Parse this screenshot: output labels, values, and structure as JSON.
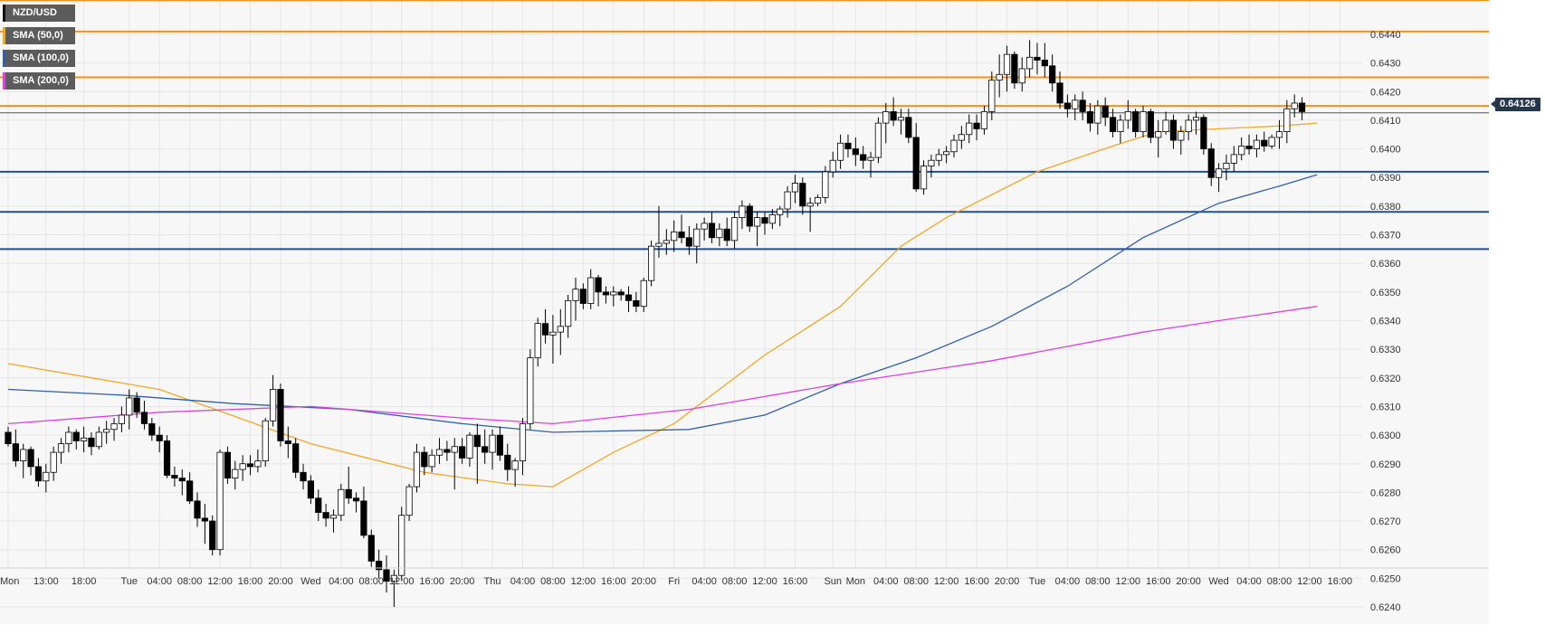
{
  "legend": [
    {
      "label": "NZD/USD",
      "color": "#111111"
    },
    {
      "label": "SMA (50,0)",
      "color": "#f5a623"
    },
    {
      "label": "SMA (100,0)",
      "color": "#2f5fad"
    },
    {
      "label": "SMA (200,0)",
      "color": "#e33de3"
    }
  ],
  "last_price": "0.64126",
  "chart_data": {
    "type": "candlestick",
    "symbol": "NZD/USD",
    "ylim": [
      0.6235,
      0.6452
    ],
    "y_ticks": [
      "0.6240",
      "0.6250",
      "0.6260",
      "0.6270",
      "0.6280",
      "0.6290",
      "0.6300",
      "0.6310",
      "0.6320",
      "0.6330",
      "0.6340",
      "0.6350",
      "0.6360",
      "0.6370",
      "0.6380",
      "0.6390",
      "0.6400",
      "0.6410",
      "0.6420",
      "0.6430",
      "0.6440"
    ],
    "x_ticks": [
      {
        "label": "Mon",
        "hour": 0
      },
      {
        "label": "13:00",
        "hour": 5
      },
      {
        "label": "18:00",
        "hour": 10
      },
      {
        "label": "Tue",
        "hour": 16
      },
      {
        "label": "04:00",
        "hour": 20
      },
      {
        "label": "08:00",
        "hour": 24
      },
      {
        "label": "12:00",
        "hour": 28
      },
      {
        "label": "16:00",
        "hour": 32
      },
      {
        "label": "20:00",
        "hour": 36
      },
      {
        "label": "Wed",
        "hour": 40
      },
      {
        "label": "04:00",
        "hour": 44
      },
      {
        "label": "08:00",
        "hour": 48
      },
      {
        "label": "12:00",
        "hour": 52
      },
      {
        "label": "16:00",
        "hour": 56
      },
      {
        "label": "20:00",
        "hour": 60
      },
      {
        "label": "Thu",
        "hour": 64
      },
      {
        "label": "04:00",
        "hour": 68
      },
      {
        "label": "08:00",
        "hour": 72
      },
      {
        "label": "12:00",
        "hour": 76
      },
      {
        "label": "16:00",
        "hour": 80
      },
      {
        "label": "20:00",
        "hour": 84
      },
      {
        "label": "Fri",
        "hour": 88
      },
      {
        "label": "04:00",
        "hour": 92
      },
      {
        "label": "08:00",
        "hour": 96
      },
      {
        "label": "12:00",
        "hour": 100
      },
      {
        "label": "16:00",
        "hour": 104
      },
      {
        "label": "Sun",
        "hour": 109
      },
      {
        "label": "Mon",
        "hour": 112
      },
      {
        "label": "04:00",
        "hour": 116
      },
      {
        "label": "08:00",
        "hour": 120
      },
      {
        "label": "12:00",
        "hour": 124
      },
      {
        "label": "16:00",
        "hour": 128
      },
      {
        "label": "20:00",
        "hour": 132
      },
      {
        "label": "Tue",
        "hour": 136
      },
      {
        "label": "04:00",
        "hour": 140
      },
      {
        "label": "08:00",
        "hour": 144
      },
      {
        "label": "12:00",
        "hour": 148
      },
      {
        "label": "16:00",
        "hour": 152
      },
      {
        "label": "20:00",
        "hour": 156
      },
      {
        "label": "Wed",
        "hour": 160
      },
      {
        "label": "04:00",
        "hour": 164
      },
      {
        "label": "08:00",
        "hour": 168
      },
      {
        "label": "12:00",
        "hour": 172
      },
      {
        "label": "16:00",
        "hour": 176
      }
    ],
    "x_max_hour": 179,
    "candles": [
      [
        0.6301,
        0.6303,
        0.6296,
        0.6297
      ],
      [
        0.6297,
        0.6302,
        0.6289,
        0.6291
      ],
      [
        0.6291,
        0.6297,
        0.6285,
        0.6295
      ],
      [
        0.6295,
        0.6296,
        0.6286,
        0.6289
      ],
      [
        0.6289,
        0.6292,
        0.6282,
        0.6284
      ],
      [
        0.6284,
        0.629,
        0.628,
        0.6287
      ],
      [
        0.6287,
        0.6296,
        0.6284,
        0.6294
      ],
      [
        0.6294,
        0.6299,
        0.629,
        0.6297
      ],
      [
        0.6297,
        0.6303,
        0.6294,
        0.6301
      ],
      [
        0.6301,
        0.6302,
        0.6295,
        0.6298
      ],
      [
        0.6298,
        0.6303,
        0.6294,
        0.6299
      ],
      [
        0.6299,
        0.6301,
        0.6293,
        0.6296
      ],
      [
        0.6296,
        0.6303,
        0.6295,
        0.6301
      ],
      [
        0.6301,
        0.6305,
        0.6297,
        0.6302
      ],
      [
        0.6302,
        0.6306,
        0.6298,
        0.6304
      ],
      [
        0.6304,
        0.631,
        0.6301,
        0.6307
      ],
      [
        0.6307,
        0.6316,
        0.6302,
        0.6313
      ],
      [
        0.6313,
        0.6315,
        0.6306,
        0.6308
      ],
      [
        0.6308,
        0.6312,
        0.6302,
        0.6304
      ],
      [
        0.6304,
        0.6306,
        0.6298,
        0.63
      ],
      [
        0.63,
        0.6303,
        0.6294,
        0.6298
      ],
      [
        0.6298,
        0.63,
        0.6285,
        0.6286
      ],
      [
        0.6286,
        0.6289,
        0.6282,
        0.6285
      ],
      [
        0.6285,
        0.6288,
        0.6279,
        0.6284
      ],
      [
        0.6284,
        0.6287,
        0.6276,
        0.6277
      ],
      [
        0.6277,
        0.628,
        0.6268,
        0.6271
      ],
      [
        0.6271,
        0.6276,
        0.6262,
        0.627
      ],
      [
        0.627,
        0.6272,
        0.6258,
        0.626
      ],
      [
        0.626,
        0.6295,
        0.6258,
        0.6294
      ],
      [
        0.6294,
        0.6296,
        0.6283,
        0.6285
      ],
      [
        0.6285,
        0.6291,
        0.6281,
        0.6288
      ],
      [
        0.6288,
        0.6293,
        0.6284,
        0.629
      ],
      [
        0.629,
        0.6293,
        0.6286,
        0.6289
      ],
      [
        0.6289,
        0.6295,
        0.6287,
        0.6291
      ],
      [
        0.6291,
        0.6306,
        0.6289,
        0.6305
      ],
      [
        0.6305,
        0.6321,
        0.6303,
        0.6316
      ],
      [
        0.6316,
        0.6318,
        0.6296,
        0.6298
      ],
      [
        0.6298,
        0.6303,
        0.6292,
        0.6297
      ],
      [
        0.6297,
        0.6299,
        0.6285,
        0.6287
      ],
      [
        0.6287,
        0.629,
        0.6281,
        0.6284
      ],
      [
        0.6284,
        0.6286,
        0.6276,
        0.6278
      ],
      [
        0.6278,
        0.6281,
        0.627,
        0.6273
      ],
      [
        0.6273,
        0.6276,
        0.6268,
        0.6271
      ],
      [
        0.6271,
        0.6274,
        0.6266,
        0.6272
      ],
      [
        0.6272,
        0.6283,
        0.627,
        0.6281
      ],
      [
        0.6281,
        0.6289,
        0.6276,
        0.6278
      ],
      [
        0.6278,
        0.628,
        0.6273,
        0.6277
      ],
      [
        0.6277,
        0.6282,
        0.6264,
        0.6265
      ],
      [
        0.6265,
        0.6267,
        0.6254,
        0.6256
      ],
      [
        0.6256,
        0.626,
        0.625,
        0.6253
      ],
      [
        0.6253,
        0.6258,
        0.6245,
        0.6249
      ],
      [
        0.6249,
        0.6253,
        0.624,
        0.6251
      ],
      [
        0.6251,
        0.6275,
        0.6249,
        0.6272
      ],
      [
        0.6272,
        0.6283,
        0.627,
        0.6282
      ],
      [
        0.6282,
        0.6297,
        0.628,
        0.6294
      ],
      [
        0.6294,
        0.6296,
        0.6286,
        0.6289
      ],
      [
        0.6289,
        0.6295,
        0.6287,
        0.6293
      ],
      [
        0.6293,
        0.6299,
        0.629,
        0.6295
      ],
      [
        0.6295,
        0.6298,
        0.6291,
        0.6294
      ],
      [
        0.6294,
        0.6299,
        0.6281,
        0.6296
      ],
      [
        0.6296,
        0.6299,
        0.629,
        0.6292
      ],
      [
        0.6292,
        0.6301,
        0.6289,
        0.63
      ],
      [
        0.63,
        0.6304,
        0.6283,
        0.6296
      ],
      [
        0.6296,
        0.6302,
        0.629,
        0.6294
      ],
      [
        0.6294,
        0.6302,
        0.6288,
        0.63
      ],
      [
        0.63,
        0.6303,
        0.6291,
        0.6293
      ],
      [
        0.6293,
        0.6297,
        0.6284,
        0.6288
      ],
      [
        0.6288,
        0.6292,
        0.6282,
        0.6291
      ],
      [
        0.6291,
        0.6306,
        0.6286,
        0.6304
      ],
      [
        0.6304,
        0.633,
        0.6302,
        0.6327
      ],
      [
        0.6327,
        0.6341,
        0.6324,
        0.6339
      ],
      [
        0.6339,
        0.6344,
        0.6332,
        0.6335
      ],
      [
        0.6335,
        0.6342,
        0.6325,
        0.6336
      ],
      [
        0.6336,
        0.6344,
        0.6328,
        0.6338
      ],
      [
        0.6338,
        0.6349,
        0.6334,
        0.6347
      ],
      [
        0.6347,
        0.6355,
        0.634,
        0.6351
      ],
      [
        0.6351,
        0.6353,
        0.6344,
        0.6346
      ],
      [
        0.6346,
        0.6358,
        0.6344,
        0.6355
      ],
      [
        0.6355,
        0.6356,
        0.6345,
        0.635
      ],
      [
        0.635,
        0.6352,
        0.6346,
        0.6349
      ],
      [
        0.6349,
        0.6352,
        0.6345,
        0.635
      ],
      [
        0.635,
        0.6351,
        0.6347,
        0.6349
      ],
      [
        0.6349,
        0.6352,
        0.6343,
        0.6347
      ],
      [
        0.6347,
        0.635,
        0.6343,
        0.6345
      ],
      [
        0.6345,
        0.6355,
        0.6343,
        0.6354
      ],
      [
        0.6354,
        0.6368,
        0.6352,
        0.6366
      ],
      [
        0.6366,
        0.638,
        0.6362,
        0.6367
      ],
      [
        0.6367,
        0.6372,
        0.6363,
        0.6368
      ],
      [
        0.6368,
        0.6375,
        0.6364,
        0.6371
      ],
      [
        0.6371,
        0.6377,
        0.6367,
        0.6369
      ],
      [
        0.6369,
        0.6373,
        0.6363,
        0.6366
      ],
      [
        0.6366,
        0.6374,
        0.636,
        0.6372
      ],
      [
        0.6372,
        0.6376,
        0.6368,
        0.6374
      ],
      [
        0.6374,
        0.6378,
        0.6367,
        0.6369
      ],
      [
        0.6369,
        0.6374,
        0.6366,
        0.6372
      ],
      [
        0.6372,
        0.6376,
        0.6366,
        0.6368
      ],
      [
        0.6368,
        0.6378,
        0.6365,
        0.6376
      ],
      [
        0.6376,
        0.6382,
        0.6372,
        0.638
      ],
      [
        0.638,
        0.6381,
        0.6371,
        0.6373
      ],
      [
        0.6373,
        0.6378,
        0.6366,
        0.6376
      ],
      [
        0.6376,
        0.6378,
        0.637,
        0.6374
      ],
      [
        0.6374,
        0.6379,
        0.6372,
        0.6377
      ],
      [
        0.6377,
        0.638,
        0.6373,
        0.6379
      ],
      [
        0.6379,
        0.6387,
        0.6376,
        0.6385
      ],
      [
        0.6385,
        0.6391,
        0.6381,
        0.6388
      ],
      [
        0.6388,
        0.639,
        0.6377,
        0.638
      ],
      [
        0.638,
        0.6383,
        0.6371,
        0.6381
      ],
      [
        0.6381,
        0.6384,
        0.638,
        0.6383
      ],
      [
        0.6383,
        0.6394,
        0.6381,
        0.6392
      ],
      [
        0.6392,
        0.6399,
        0.639,
        0.6396
      ],
      [
        0.6396,
        0.6405,
        0.6393,
        0.6402
      ],
      [
        0.6402,
        0.6405,
        0.6397,
        0.64
      ],
      [
        0.64,
        0.6404,
        0.6394,
        0.6398
      ],
      [
        0.6398,
        0.6401,
        0.6393,
        0.6396
      ],
      [
        0.6396,
        0.6399,
        0.639,
        0.6397
      ],
      [
        0.6397,
        0.6411,
        0.6395,
        0.6409
      ],
      [
        0.6409,
        0.6416,
        0.6402,
        0.6413
      ],
      [
        0.6413,
        0.6418,
        0.6408,
        0.641
      ],
      [
        0.641,
        0.6414,
        0.6405,
        0.6411
      ],
      [
        0.6411,
        0.6414,
        0.6402,
        0.6404
      ],
      [
        0.6404,
        0.6409,
        0.6385,
        0.6386
      ],
      [
        0.6386,
        0.6396,
        0.6384,
        0.6394
      ],
      [
        0.6394,
        0.6398,
        0.639,
        0.6396
      ],
      [
        0.6396,
        0.64,
        0.6394,
        0.6398
      ],
      [
        0.6398,
        0.6401,
        0.6395,
        0.6399
      ],
      [
        0.6399,
        0.6405,
        0.6397,
        0.6403
      ],
      [
        0.6403,
        0.6408,
        0.64,
        0.6405
      ],
      [
        0.6405,
        0.6412,
        0.6402,
        0.6409
      ],
      [
        0.6409,
        0.6412,
        0.6403,
        0.6407
      ],
      [
        0.6407,
        0.6415,
        0.6405,
        0.6413
      ],
      [
        0.6413,
        0.6427,
        0.641,
        0.6424
      ],
      [
        0.6424,
        0.6433,
        0.6418,
        0.6426
      ],
      [
        0.6426,
        0.6436,
        0.642,
        0.6433
      ],
      [
        0.6433,
        0.6434,
        0.6421,
        0.6423
      ],
      [
        0.6423,
        0.6432,
        0.642,
        0.6428
      ],
      [
        0.6428,
        0.6438,
        0.6425,
        0.6432
      ],
      [
        0.6432,
        0.6437,
        0.6426,
        0.6431
      ],
      [
        0.6431,
        0.6437,
        0.6425,
        0.6429
      ],
      [
        0.6429,
        0.6433,
        0.642,
        0.6423
      ],
      [
        0.6423,
        0.6427,
        0.6414,
        0.6416
      ],
      [
        0.6416,
        0.6419,
        0.6411,
        0.6414
      ],
      [
        0.6414,
        0.6419,
        0.641,
        0.6417
      ],
      [
        0.6417,
        0.642,
        0.641,
        0.6413
      ],
      [
        0.6413,
        0.6416,
        0.6406,
        0.6409
      ],
      [
        0.6409,
        0.6417,
        0.6405,
        0.6415
      ],
      [
        0.6415,
        0.6418,
        0.6408,
        0.6411
      ],
      [
        0.6411,
        0.6414,
        0.6404,
        0.6406
      ],
      [
        0.6406,
        0.6412,
        0.6402,
        0.641
      ],
      [
        0.641,
        0.6417,
        0.6407,
        0.6413
      ],
      [
        0.6413,
        0.6414,
        0.6404,
        0.6406
      ],
      [
        0.6406,
        0.6415,
        0.6404,
        0.6413
      ],
      [
        0.6413,
        0.6414,
        0.6402,
        0.6404
      ],
      [
        0.6404,
        0.641,
        0.6397,
        0.6406
      ],
      [
        0.6406,
        0.6413,
        0.6405,
        0.641
      ],
      [
        0.641,
        0.6412,
        0.64,
        0.6403
      ],
      [
        0.6403,
        0.6408,
        0.6398,
        0.6406
      ],
      [
        0.6406,
        0.6412,
        0.6403,
        0.641
      ],
      [
        0.641,
        0.6413,
        0.6405,
        0.6411
      ],
      [
        0.6411,
        0.6412,
        0.6398,
        0.64
      ],
      [
        0.64,
        0.6402,
        0.6387,
        0.639
      ],
      [
        0.639,
        0.6395,
        0.6385,
        0.6393
      ],
      [
        0.6393,
        0.6398,
        0.6389,
        0.6395
      ],
      [
        0.6395,
        0.6401,
        0.6392,
        0.6398
      ],
      [
        0.6398,
        0.6404,
        0.6396,
        0.6401
      ],
      [
        0.6401,
        0.6405,
        0.6398,
        0.64
      ],
      [
        0.64,
        0.6405,
        0.6397,
        0.6403
      ],
      [
        0.6403,
        0.6406,
        0.6399,
        0.6401
      ],
      [
        0.6401,
        0.6405,
        0.64,
        0.6404
      ],
      [
        0.6404,
        0.641,
        0.64,
        0.6406
      ],
      [
        0.6406,
        0.6417,
        0.6402,
        0.6414
      ],
      [
        0.6414,
        0.6419,
        0.6411,
        0.6416
      ],
      [
        0.6416,
        0.6418,
        0.641,
        0.6413
      ]
    ],
    "sma50": [
      [
        0,
        0.6325
      ],
      [
        20,
        0.6316
      ],
      [
        40,
        0.6297
      ],
      [
        55,
        0.6287
      ],
      [
        66,
        0.6283
      ],
      [
        72,
        0.6282
      ],
      [
        80,
        0.6294
      ],
      [
        88,
        0.6304
      ],
      [
        100,
        0.6328
      ],
      [
        110,
        0.6345
      ],
      [
        118,
        0.6366
      ],
      [
        124,
        0.6376
      ],
      [
        136,
        0.6392
      ],
      [
        146,
        0.6401
      ],
      [
        152,
        0.6406
      ],
      [
        160,
        0.6407
      ],
      [
        168,
        0.6408
      ],
      [
        173,
        0.6409
      ]
    ],
    "sma100": [
      [
        0,
        0.6316
      ],
      [
        15,
        0.6314
      ],
      [
        30,
        0.6311
      ],
      [
        45,
        0.6309
      ],
      [
        60,
        0.6304
      ],
      [
        72,
        0.6301
      ],
      [
        90,
        0.6302
      ],
      [
        100,
        0.6307
      ],
      [
        110,
        0.6318
      ],
      [
        120,
        0.6327
      ],
      [
        130,
        0.6338
      ],
      [
        140,
        0.6352
      ],
      [
        150,
        0.6369
      ],
      [
        160,
        0.6381
      ],
      [
        168,
        0.6387
      ],
      [
        173,
        0.6391
      ]
    ],
    "sma200": [
      [
        0,
        0.6304
      ],
      [
        20,
        0.6308
      ],
      [
        40,
        0.631
      ],
      [
        60,
        0.6306
      ],
      [
        72,
        0.6304
      ],
      [
        90,
        0.6309
      ],
      [
        110,
        0.6318
      ],
      [
        130,
        0.6326
      ],
      [
        140,
        0.6331
      ],
      [
        150,
        0.6336
      ],
      [
        160,
        0.634
      ],
      [
        173,
        0.6345
      ]
    ],
    "h_lines_orange": [
      0.6452,
      0.6441,
      0.6425,
      0.6415
    ],
    "h_lines_blue": [
      0.6392,
      0.6378,
      0.6365
    ],
    "current_price": 0.64126,
    "colors": {
      "resistance": "#f68f14",
      "support": "#1f4e9c",
      "sma50": "#f5a623",
      "sma100": "#2f5fad",
      "sma200": "#e33de3",
      "last_line": "#555555"
    }
  }
}
